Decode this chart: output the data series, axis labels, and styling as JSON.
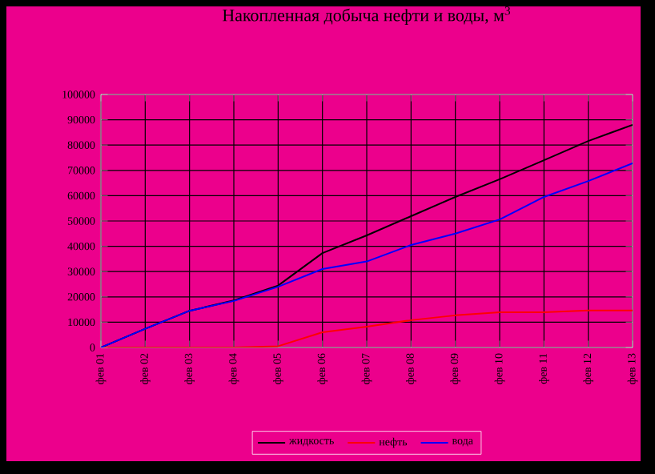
{
  "chart_data": {
    "type": "line",
    "title": "Накопленная добыча нефти и воды, м$^{3}$",
    "categories": [
      "фев 01",
      "фев 02",
      "фев 03",
      "фев 04",
      "фев 05",
      "фев 06",
      "фев 07",
      "фев 08",
      "фев 09",
      "фев 10",
      "фев 11",
      "фев 12",
      "фев 13"
    ],
    "series": [
      {
        "name": "жидкость",
        "color": "#000000",
        "values": [
          0,
          7400,
          14500,
          18600,
          24500,
          37300,
          44300,
          51900,
          59500,
          66500,
          74000,
          81600,
          88000
        ]
      },
      {
        "name": "нефть",
        "color": "#ff0000",
        "values": [
          0,
          0,
          0,
          0,
          500,
          6000,
          8200,
          10800,
          12700,
          13900,
          13900,
          14600,
          14600
        ]
      },
      {
        "name": "вода",
        "color": "#0000ff",
        "values": [
          0,
          7400,
          14500,
          18400,
          24000,
          31000,
          34000,
          40500,
          45000,
          50600,
          59500,
          65800,
          72800
        ]
      }
    ],
    "ylim": [
      0,
      100000
    ],
    "yticks": [
      0,
      10000,
      20000,
      30000,
      40000,
      50000,
      60000,
      70000,
      80000,
      90000,
      100000
    ],
    "grid": true,
    "legend": "bottom",
    "marker": "none",
    "line_style": "solid"
  }
}
